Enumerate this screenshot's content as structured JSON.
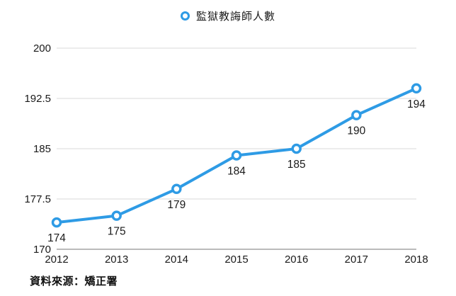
{
  "legend": {
    "label": "監獄教誨師人數",
    "marker": "ring-icon"
  },
  "source_note": "資料來源：矯正署",
  "chart_data": {
    "type": "line",
    "title": "監獄教誨師人數",
    "categories": [
      "2012",
      "2013",
      "2014",
      "2015",
      "2016",
      "2017",
      "2018"
    ],
    "series": [
      {
        "name": "監獄教誨師人數",
        "values": [
          174,
          175,
          179,
          184,
          185,
          190,
          194
        ]
      }
    ],
    "data_labels": [
      "174",
      "175",
      "179",
      "184",
      "185",
      "190",
      "194"
    ],
    "xlabel": "",
    "ylabel": "",
    "ylim": [
      170,
      200
    ],
    "yticks": [
      170,
      177.5,
      185,
      192.5,
      200
    ],
    "ytick_labels": [
      "170",
      "177.5",
      "185",
      "192.5",
      "200"
    ],
    "grid": true,
    "legend_position": "top-center",
    "annotation": "資料來源：矯正署",
    "colors": {
      "line": "#2E9BE5",
      "marker_fill": "#ffffff",
      "grid": "#d9d9d9",
      "axis_line": "#777777",
      "text": "#1a1a1a"
    }
  }
}
